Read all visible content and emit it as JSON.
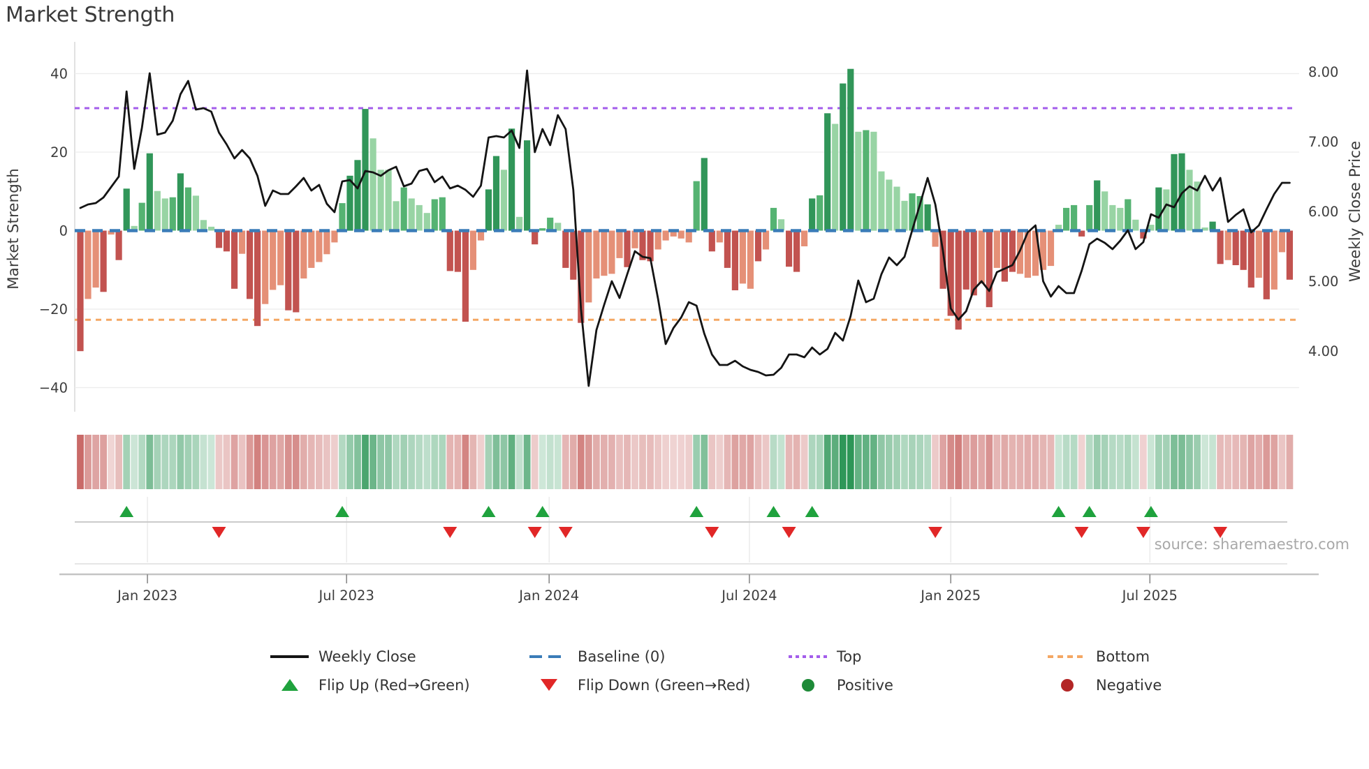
{
  "title": "Market Strength",
  "source": "source: sharemaestro.com",
  "axes": {
    "left": {
      "title": "Market Strength",
      "ticks": [
        {
          "label": "40",
          "value": 40
        },
        {
          "label": "20",
          "value": 20
        },
        {
          "label": "0",
          "value": 0
        },
        {
          "label": "−20",
          "value": -20
        },
        {
          "label": "−40",
          "value": -40
        }
      ]
    },
    "right": {
      "title": "Weekly Close Price",
      "ticks": [
        {
          "label": "8.00",
          "value": 8
        },
        {
          "label": "7.00",
          "value": 7
        },
        {
          "label": "6.00",
          "value": 6
        },
        {
          "label": "5.00",
          "value": 5
        },
        {
          "label": "4.00",
          "value": 4
        }
      ]
    },
    "x": {
      "ticks": [
        {
          "label": "Jan 2023",
          "week": 8.71
        },
        {
          "label": "Jul 2023",
          "week": 34.57
        },
        {
          "label": "Jan 2024",
          "week": 60.86
        },
        {
          "label": "Jul 2024",
          "week": 86.86
        },
        {
          "label": "Jan 2025",
          "week": 113.0
        },
        {
          "label": "Jul 2025",
          "week": 138.86
        }
      ]
    }
  },
  "chart_data": {
    "type": "bar+line+heatmap",
    "x_unit": "week-index (weekly data, ~Nov 2022 to ~Nov 2025)",
    "title": "Market Strength",
    "ylabel_left": "Market Strength",
    "ylabel_right": "Weekly Close Price",
    "ylim_strength": [
      -46,
      48
    ],
    "ylim_price": [
      3.13,
      8.43
    ],
    "baseline": 0,
    "top_level": 31.2,
    "bottom_level": -22.7,
    "strength": [
      -30.7,
      -17.4,
      -14.5,
      -15.6,
      -1.0,
      -7.5,
      10.7,
      1.2,
      7.1,
      19.7,
      10.1,
      8.2,
      8.5,
      14.6,
      11.0,
      8.9,
      2.7,
      1.0,
      -4.4,
      -5.3,
      -14.8,
      -5.9,
      -17.4,
      -24.3,
      -18.7,
      -15.1,
      -13.9,
      -20.3,
      -20.8,
      -12.2,
      -9.5,
      -8.0,
      -6.0,
      -3.0,
      7.0,
      14.0,
      18.0,
      31.0,
      23.5,
      15.5,
      15.5,
      7.5,
      11.0,
      8.2,
      6.5,
      4.5,
      8.0,
      8.5,
      -10.3,
      -10.5,
      -23.2,
      -10.0,
      -2.5,
      10.5,
      19.0,
      15.5,
      26.0,
      3.5,
      23.0,
      -3.5,
      0.6,
      3.3,
      2.0,
      -9.5,
      -12.5,
      -23.5,
      -18.3,
      -12.2,
      -11.5,
      -11.0,
      -7.0,
      -9.3,
      -4.5,
      -7.5,
      -7.8,
      -4.8,
      -2.5,
      -1.5,
      -2.0,
      -3.0,
      12.6,
      18.5,
      -5.3,
      -3.0,
      -9.5,
      -15.2,
      -13.5,
      -14.8,
      -7.8,
      -4.8,
      5.8,
      2.9,
      -9.2,
      -10.5,
      -4.0,
      8.2,
      9.0,
      29.9,
      27.2,
      37.5,
      41.2,
      25.2,
      25.6,
      25.2,
      15.1,
      13.0,
      11.2,
      7.6,
      9.5,
      8.8,
      6.7,
      -4.1,
      -14.8,
      -21.7,
      -25.2,
      -15.0,
      -16.5,
      -13.5,
      -19.5,
      -9.5,
      -13.0,
      -10.5,
      -11.0,
      -12.0,
      -11.5,
      -10.0,
      -9.0,
      1.5,
      5.8,
      6.5,
      -1.5,
      6.5,
      12.8,
      10.0,
      6.5,
      5.8,
      8.0,
      2.8,
      -2.0,
      1.5,
      11.0,
      10.5,
      19.5,
      19.7,
      15.5,
      12.5,
      0.8,
      2.3,
      -8.5,
      -7.5,
      -8.8,
      -10.0,
      -14.5,
      -12.0,
      -17.5,
      -15.0,
      -5.5,
      -12.5
    ],
    "shades": [
      "r2",
      "r1",
      "r1",
      "r2",
      "r1",
      "r2",
      "g3",
      "g1",
      "g2",
      "g3",
      "g1",
      "g1",
      "g2",
      "g3",
      "g2",
      "g1",
      "g1",
      "g1",
      "r2",
      "r2",
      "r2",
      "r1",
      "r2",
      "r2",
      "r1",
      "r1",
      "r1",
      "r2",
      "r2",
      "r1",
      "r1",
      "r1",
      "r1",
      "r1",
      "g2",
      "g3",
      "g3",
      "g3",
      "g1",
      "g1",
      "g1",
      "g1",
      "g2",
      "g1",
      "g1",
      "g1",
      "g2",
      "g2",
      "r2",
      "r2",
      "r2",
      "r1",
      "r1",
      "g3",
      "g3",
      "g1",
      "g3",
      "g1",
      "g3",
      "r2",
      "g2",
      "g2",
      "g1",
      "r2",
      "r2",
      "r2",
      "r1",
      "r1",
      "r1",
      "r1",
      "r1",
      "r2",
      "r1",
      "r2",
      "r2",
      "r1",
      "r1",
      "r1",
      "r1",
      "r1",
      "g2",
      "g3",
      "r2",
      "r1",
      "r2",
      "r2",
      "r1",
      "r1",
      "r2",
      "r1",
      "g2",
      "g1",
      "r2",
      "r2",
      "r1",
      "g3",
      "g2",
      "g3",
      "g1",
      "g3",
      "g3",
      "g1",
      "g2",
      "g1",
      "g1",
      "g1",
      "g1",
      "g1",
      "g2",
      "g2",
      "g3",
      "r1",
      "r2",
      "r2",
      "r2",
      "r2",
      "r2",
      "r1",
      "r2",
      "r1",
      "r2",
      "r2",
      "r1",
      "r1",
      "r1",
      "r1",
      "r1",
      "g1",
      "g2",
      "g2",
      "r2",
      "g2",
      "g3",
      "g1",
      "g1",
      "g1",
      "g2",
      "g1",
      "r2",
      "g1",
      "g3",
      "g1",
      "g3",
      "g3",
      "g1",
      "g1",
      "g1",
      "g3",
      "r2",
      "r1",
      "r2",
      "r2",
      "r2",
      "r1",
      "r2",
      "r1",
      "r1",
      "r2"
    ],
    "weekly_close": [
      6.05,
      6.1,
      6.12,
      6.2,
      6.35,
      6.5,
      7.72,
      6.61,
      7.2,
      7.98,
      7.1,
      7.13,
      7.3,
      7.68,
      7.87,
      7.46,
      7.48,
      7.43,
      7.13,
      6.96,
      6.76,
      6.88,
      6.76,
      6.51,
      6.08,
      6.3,
      6.25,
      6.25,
      6.36,
      6.48,
      6.3,
      6.38,
      6.11,
      5.99,
      6.43,
      6.45,
      6.33,
      6.58,
      6.56,
      6.51,
      6.59,
      6.64,
      6.36,
      6.4,
      6.58,
      6.61,
      6.42,
      6.5,
      6.33,
      6.37,
      6.31,
      6.21,
      6.37,
      7.06,
      7.08,
      7.06,
      7.16,
      6.91,
      8.02,
      6.85,
      7.18,
      6.95,
      7.38,
      7.18,
      6.31,
      4.6,
      3.5,
      4.3,
      4.66,
      5.0,
      4.76,
      5.1,
      5.43,
      5.35,
      5.33,
      4.75,
      4.1,
      4.33,
      4.48,
      4.7,
      4.65,
      4.25,
      3.95,
      3.8,
      3.8,
      3.86,
      3.78,
      3.73,
      3.7,
      3.65,
      3.66,
      3.76,
      3.95,
      3.95,
      3.91,
      4.05,
      3.95,
      4.03,
      4.26,
      4.15,
      4.5,
      5.01,
      4.7,
      4.75,
      5.1,
      5.34,
      5.23,
      5.35,
      5.73,
      6.1,
      6.48,
      6.1,
      5.43,
      4.61,
      4.45,
      4.57,
      4.88,
      5.0,
      4.86,
      5.13,
      5.18,
      5.23,
      5.44,
      5.7,
      5.8,
      5.0,
      4.78,
      4.93,
      4.83,
      4.83,
      5.15,
      5.53,
      5.61,
      5.55,
      5.46,
      5.58,
      5.73,
      5.46,
      5.56,
      5.96,
      5.91,
      6.1,
      6.06,
      6.26,
      6.36,
      6.3,
      6.51,
      6.3,
      6.48,
      5.85,
      5.95,
      6.03,
      5.7,
      5.8,
      6.03,
      6.25,
      6.41,
      6.41
    ],
    "flip_up_weeks": [
      6,
      34,
      53,
      60,
      80,
      90,
      95,
      127,
      131,
      139
    ],
    "flip_down_weeks": [
      18,
      48,
      59,
      63,
      82,
      92,
      111,
      130,
      138,
      148
    ]
  },
  "legend": {
    "weekly_close": "Weekly Close",
    "baseline": "Baseline (0)",
    "top": "Top",
    "bottom": "Bottom",
    "flip_up": "Flip Up (Red→Green)",
    "flip_down": "Flip Down (Green→Red)",
    "positive": "Positive",
    "negative": "Negative"
  },
  "colors": {
    "bar_dark_green": "#319659",
    "bar_mid_green": "#55b372",
    "bar_light_green": "#98d4a4",
    "bar_salmon": "#e59077",
    "bar_dark_red": "#c25350",
    "price_line": "#141414",
    "baseline": "#3a7cb8",
    "top_line": "#a35deb",
    "bottom_line": "#f4a763",
    "flip_up": "#1fa23d",
    "flip_down": "#e12727",
    "positive_dot": "#1e8a38",
    "negative_dot": "#b32626",
    "heat_green": "#2d9657",
    "heat_red": "#c0504d",
    "grid": "#ececec",
    "spine": "#d9d9d9",
    "axis_line": "#c4c4c4",
    "tick_text": "#3d3d3d"
  }
}
